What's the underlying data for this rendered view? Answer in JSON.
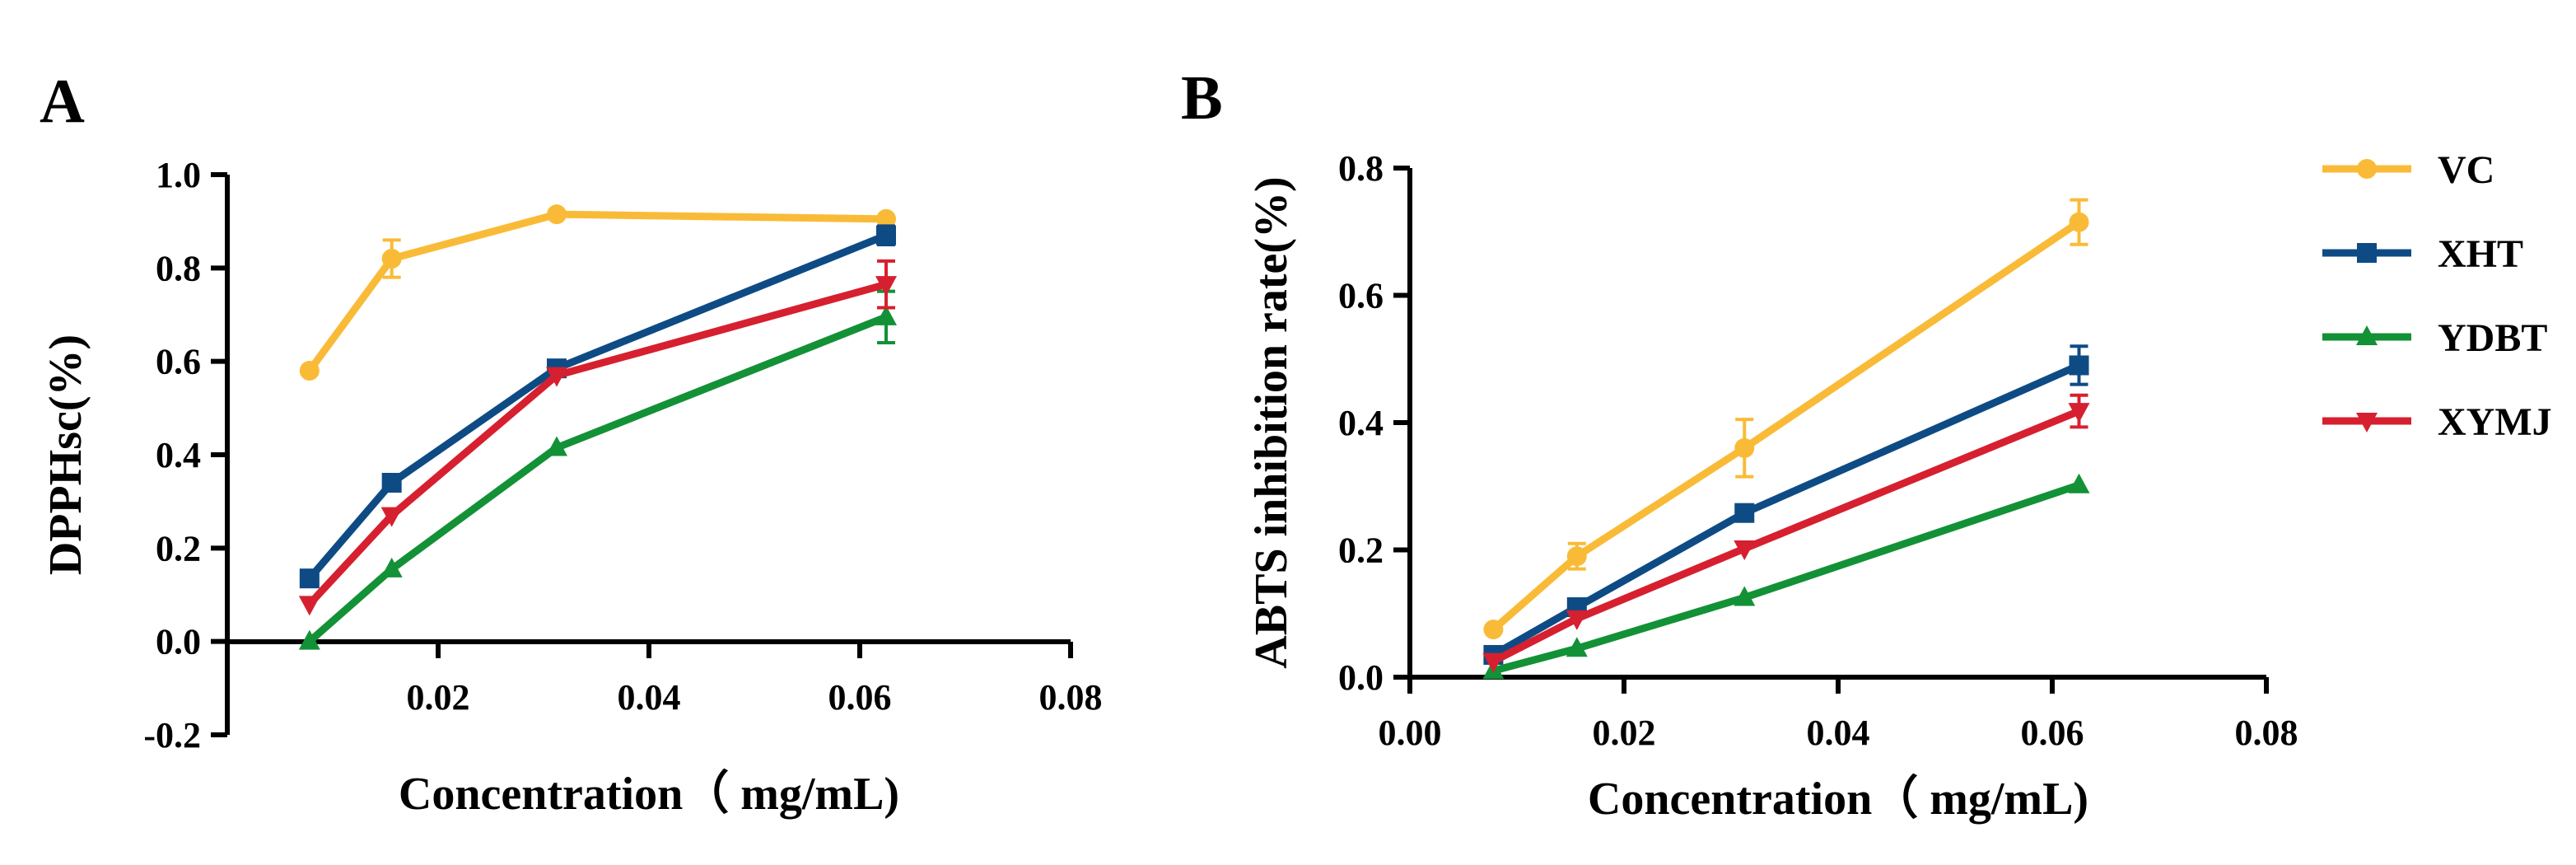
{
  "chart_data": [
    {
      "type": "line",
      "panel": "A",
      "xlabel": "Concentration（ mg/mL)",
      "ylabel": "DPPHsc(%)",
      "xlim": [
        0,
        0.08
      ],
      "ylim": [
        -0.2,
        1.0
      ],
      "xticks": [
        0.02,
        0.04,
        0.06,
        0.08
      ],
      "xtick_labels": [
        "0.02",
        "0.04",
        "0.06",
        "0.08"
      ],
      "yticks": [
        -0.2,
        0.0,
        0.2,
        0.4,
        0.6,
        0.8,
        1.0
      ],
      "ytick_labels": [
        "-0.2",
        "0.0",
        "0.2",
        "0.4",
        "0.6",
        "0.8",
        "1.0"
      ],
      "x": [
        0.0078,
        0.0156,
        0.03125,
        0.0625
      ],
      "series": [
        {
          "name": "VC",
          "values": [
            0.58,
            0.82,
            0.915,
            0.905
          ],
          "errors": [
            0.0,
            0.04,
            0.0,
            0.0
          ]
        },
        {
          "name": "XHT",
          "values": [
            0.135,
            0.34,
            0.585,
            0.87
          ],
          "errors": [
            0.0,
            0.0,
            0.0,
            0.02
          ]
        },
        {
          "name": "YDBT",
          "values": [
            0.0,
            0.155,
            0.415,
            0.695
          ],
          "errors": [
            0.0,
            0.0,
            0.0,
            0.055
          ]
        },
        {
          "name": "XYMJ",
          "values": [
            0.08,
            0.27,
            0.57,
            0.765
          ],
          "errors": [
            0.0,
            0.0,
            0.0,
            0.05
          ]
        }
      ]
    },
    {
      "type": "line",
      "panel": "B",
      "xlabel": "Concentration（ mg/mL)",
      "ylabel": "ABTS inhibition rate(%)",
      "xlim": [
        0,
        0.08
      ],
      "ylim": [
        0,
        0.8
      ],
      "xticks": [
        0.0,
        0.02,
        0.04,
        0.06,
        0.08
      ],
      "xtick_labels": [
        "0.00",
        "0.02",
        "0.04",
        "0.06",
        "0.08"
      ],
      "yticks": [
        0.0,
        0.2,
        0.4,
        0.6,
        0.8
      ],
      "ytick_labels": [
        "0.0",
        "0.2",
        "0.4",
        "0.6",
        "0.8"
      ],
      "x": [
        0.0078,
        0.0156,
        0.03125,
        0.0625
      ],
      "series": [
        {
          "name": "VC",
          "values": [
            0.075,
            0.19,
            0.36,
            0.715
          ],
          "errors": [
            0.0,
            0.02,
            0.045,
            0.035
          ]
        },
        {
          "name": "XHT",
          "values": [
            0.035,
            0.11,
            0.258,
            0.49
          ],
          "errors": [
            0.0,
            0.0,
            0.0,
            0.03
          ]
        },
        {
          "name": "YDBT",
          "values": [
            0.01,
            0.045,
            0.125,
            0.302
          ],
          "errors": [
            0.0,
            0.0,
            0.0,
            0.0
          ]
        },
        {
          "name": "XYMJ",
          "values": [
            0.025,
            0.092,
            0.202,
            0.418
          ],
          "errors": [
            0.0,
            0.0,
            0.0,
            0.025
          ]
        }
      ]
    }
  ],
  "legend": [
    {
      "name": "VC",
      "color": "#F9BB37",
      "marker": "circle"
    },
    {
      "name": "XHT",
      "color": "#0E4B85",
      "marker": "square"
    },
    {
      "name": "YDBT",
      "color": "#139136",
      "marker": "triangle-up"
    },
    {
      "name": "XYMJ",
      "color": "#D6202F",
      "marker": "triangle-down"
    }
  ]
}
